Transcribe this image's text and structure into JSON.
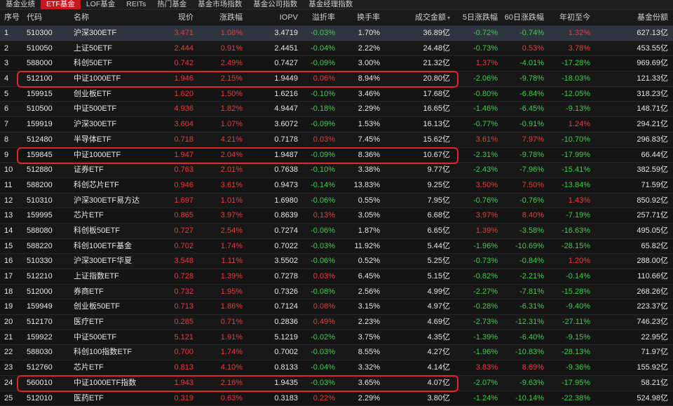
{
  "tabs": [
    {
      "label": "基金业绩",
      "active": false
    },
    {
      "label": "ETF基金",
      "active": true
    },
    {
      "label": "LOF基金",
      "active": false
    },
    {
      "label": "REITs",
      "active": false
    },
    {
      "label": "热门基金",
      "active": false
    },
    {
      "label": "基金市场指数",
      "active": false
    },
    {
      "label": "基金公司指数",
      "active": false
    },
    {
      "label": "基金经理指数",
      "active": false
    }
  ],
  "columns": [
    "序号",
    "代码",
    "名称",
    "现价",
    "涨跌幅",
    "IOPV",
    "溢折率",
    "换手率",
    "成交金额",
    "5日涨跌幅",
    "60日涨跌幅",
    "年初至今",
    "基金份额"
  ],
  "sort_indicator": "▾",
  "highlight_color": "#e0242b",
  "rows": [
    [
      "1",
      "510300",
      "沪深300ETF",
      "3.471",
      "1.08%",
      "3.4719",
      "-0.03%",
      "1.70%",
      "36.89亿",
      "-0.72%",
      "-0.74%",
      "1.32%",
      "627.13亿"
    ],
    [
      "2",
      "510050",
      "上证50ETF",
      "2.444",
      "0.91%",
      "2.4451",
      "-0.04%",
      "2.22%",
      "24.48亿",
      "-0.73%",
      "0.53%",
      "3.78%",
      "453.55亿"
    ],
    [
      "3",
      "588000",
      "科创50ETF",
      "0.742",
      "2.49%",
      "0.7427",
      "-0.09%",
      "3.00%",
      "21.32亿",
      "1.37%",
      "-4.01%",
      "-17.28%",
      "969.69亿"
    ],
    [
      "4",
      "512100",
      "中证1000ETF",
      "1.946",
      "2.15%",
      "1.9449",
      "0.06%",
      "8.94%",
      "20.80亿",
      "-2.06%",
      "-9.78%",
      "-18.03%",
      "121.33亿"
    ],
    [
      "5",
      "159915",
      "创业板ETF",
      "1.620",
      "1.50%",
      "1.6216",
      "-0.10%",
      "3.46%",
      "17.68亿",
      "-0.80%",
      "-6.84%",
      "-12.05%",
      "318.23亿"
    ],
    [
      "6",
      "510500",
      "中证500ETF",
      "4.936",
      "1.82%",
      "4.9447",
      "-0.18%",
      "2.29%",
      "16.65亿",
      "-1.46%",
      "-6.45%",
      "-9.13%",
      "148.71亿"
    ],
    [
      "7",
      "159919",
      "沪深300ETF",
      "3.604",
      "1.07%",
      "3.6072",
      "-0.09%",
      "1.53%",
      "16.13亿",
      "-0.77%",
      "-0.91%",
      "1.24%",
      "294.21亿"
    ],
    [
      "8",
      "512480",
      "半导体ETF",
      "0.718",
      "4.21%",
      "0.7178",
      "0.03%",
      "7.45%",
      "15.62亿",
      "3.61%",
      "7.97%",
      "-10.70%",
      "296.83亿"
    ],
    [
      "9",
      "159845",
      "中证1000ETF",
      "1.947",
      "2.04%",
      "1.9487",
      "-0.09%",
      "8.36%",
      "10.67亿",
      "-2.31%",
      "-9.78%",
      "-17.99%",
      "66.44亿"
    ],
    [
      "10",
      "512880",
      "证券ETF",
      "0.763",
      "2.01%",
      "0.7638",
      "-0.10%",
      "3.38%",
      "9.77亿",
      "-2.43%",
      "-7.96%",
      "-15.41%",
      "382.59亿"
    ],
    [
      "11",
      "588200",
      "科创芯片ETF",
      "0.946",
      "3.61%",
      "0.9473",
      "-0.14%",
      "13.83%",
      "9.25亿",
      "3.50%",
      "7.50%",
      "-13.84%",
      "71.59亿"
    ],
    [
      "12",
      "510310",
      "沪深300ETF易方达",
      "1.697",
      "1.01%",
      "1.6980",
      "-0.06%",
      "0.55%",
      "7.95亿",
      "-0.76%",
      "-0.76%",
      "1.43%",
      "850.92亿"
    ],
    [
      "13",
      "159995",
      "芯片ETF",
      "0.865",
      "3.97%",
      "0.8639",
      "0.13%",
      "3.05%",
      "6.68亿",
      "3.97%",
      "8.40%",
      "-7.19%",
      "257.71亿"
    ],
    [
      "14",
      "588080",
      "科创板50ETF",
      "0.727",
      "2.54%",
      "0.7274",
      "-0.06%",
      "1.87%",
      "6.65亿",
      "1.39%",
      "-3.58%",
      "-16.63%",
      "495.05亿"
    ],
    [
      "15",
      "588220",
      "科创100ETF基金",
      "0.702",
      "1.74%",
      "0.7022",
      "-0.03%",
      "11.92%",
      "5.44亿",
      "-1.96%",
      "-10.69%",
      "-28.15%",
      "65.82亿"
    ],
    [
      "16",
      "510330",
      "沪深300ETF华夏",
      "3.548",
      "1.11%",
      "3.5502",
      "-0.06%",
      "0.52%",
      "5.25亿",
      "-0.73%",
      "-0.84%",
      "1.20%",
      "288.00亿"
    ],
    [
      "17",
      "512210",
      "上证指数ETF",
      "0.728",
      "1.39%",
      "0.7278",
      "0.03%",
      "6.45%",
      "5.15亿",
      "-0.82%",
      "-2.21%",
      "-0.14%",
      "110.66亿"
    ],
    [
      "18",
      "512000",
      "券商ETF",
      "0.732",
      "1.95%",
      "0.7326",
      "-0.08%",
      "2.56%",
      "4.99亿",
      "-2.27%",
      "-7.81%",
      "-15.28%",
      "268.26亿"
    ],
    [
      "19",
      "159949",
      "创业板50ETF",
      "0.713",
      "1.86%",
      "0.7124",
      "0.08%",
      "3.15%",
      "4.97亿",
      "-0.28%",
      "-6.31%",
      "-9.40%",
      "223.37亿"
    ],
    [
      "20",
      "512170",
      "医疗ETF",
      "0.285",
      "0.71%",
      "0.2836",
      "0.49%",
      "2.23%",
      "4.69亿",
      "-2.73%",
      "-12.31%",
      "-27.11%",
      "746.23亿"
    ],
    [
      "21",
      "159922",
      "中证500ETF",
      "5.121",
      "1.91%",
      "5.1219",
      "-0.02%",
      "3.75%",
      "4.35亿",
      "-1.39%",
      "-6.40%",
      "-9.15%",
      "22.95亿"
    ],
    [
      "22",
      "588030",
      "科创100指数ETF",
      "0.700",
      "1.74%",
      "0.7002",
      "-0.03%",
      "8.55%",
      "4.27亿",
      "-1.96%",
      "-10.83%",
      "-28.13%",
      "71.97亿"
    ],
    [
      "23",
      "512760",
      "芯片ETF",
      "0.813",
      "4.10%",
      "0.8133",
      "-0.04%",
      "3.32%",
      "4.14亿",
      "3.83%",
      "8.69%",
      "-9.36%",
      "155.92亿"
    ],
    [
      "24",
      "560010",
      "中证1000ETF指数",
      "1.943",
      "2.16%",
      "1.9435",
      "-0.03%",
      "3.65%",
      "4.07亿",
      "-2.07%",
      "-9.63%",
      "-17.95%",
      "58.21亿"
    ],
    [
      "25",
      "512010",
      "医药ETF",
      "0.319",
      "0.63%",
      "0.3183",
      "0.22%",
      "2.29%",
      "3.80亿",
      "-1.24%",
      "-10.14%",
      "-22.38%",
      "524.98亿"
    ]
  ],
  "selected_row": 0,
  "highlighted_rows": [
    3,
    8,
    23
  ]
}
